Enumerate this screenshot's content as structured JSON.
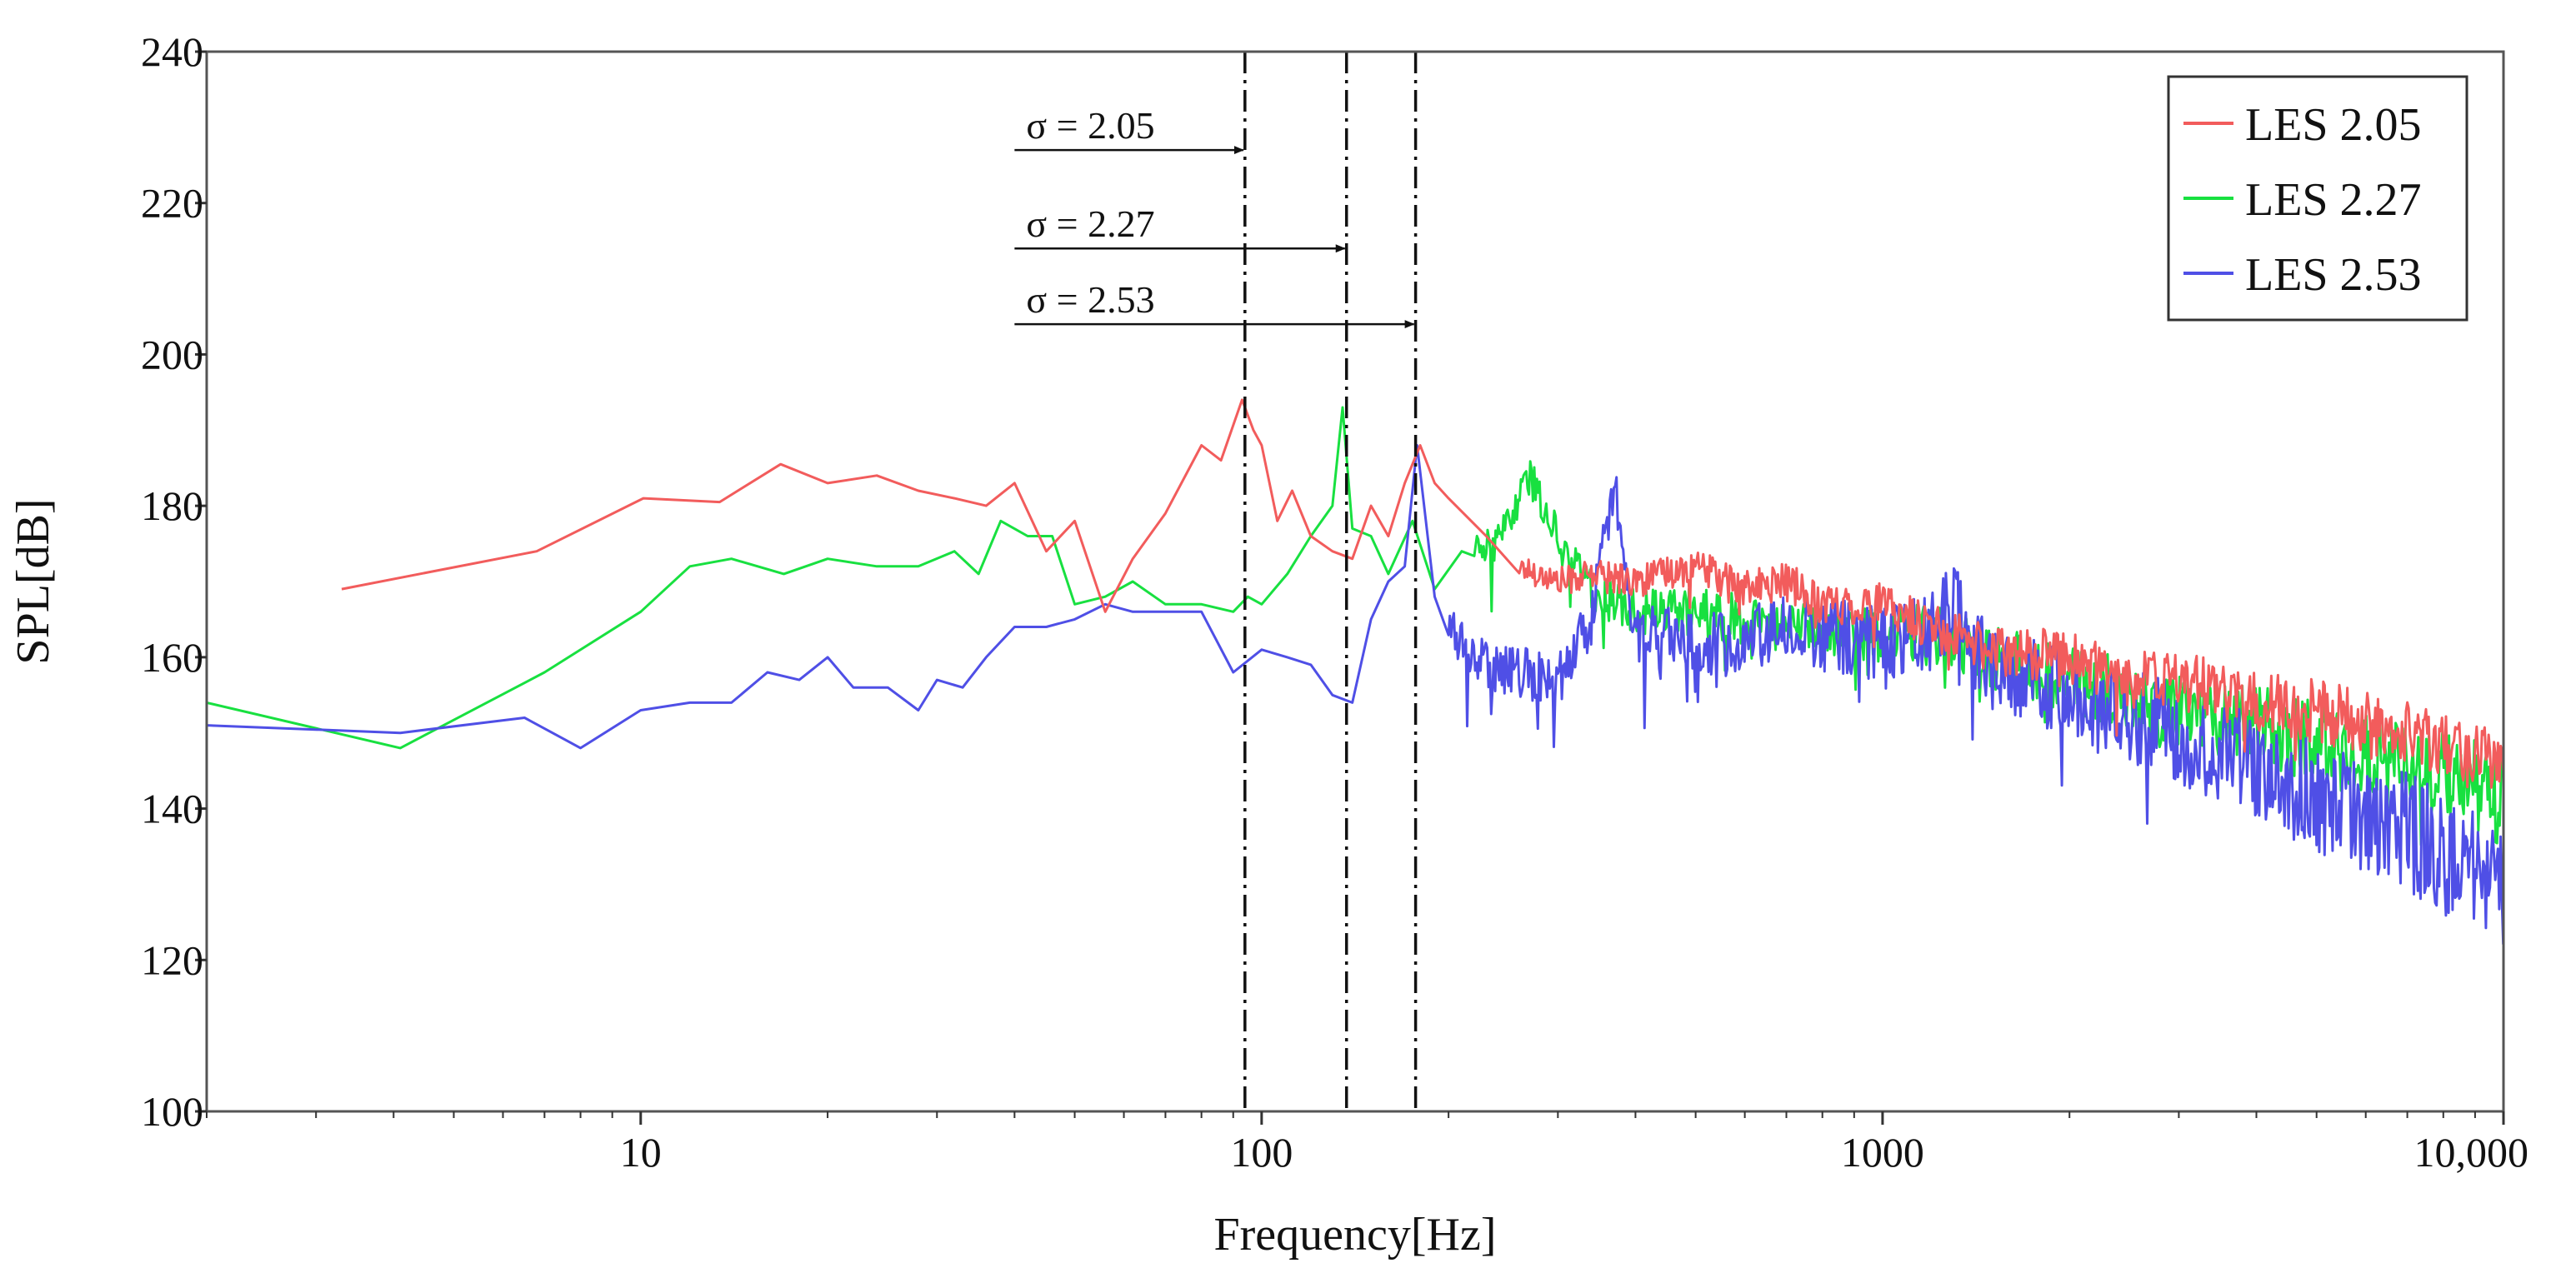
{
  "chart_data": {
    "type": "line",
    "title": "",
    "xlabel": "Frequency[Hz]",
    "ylabel": "SPL[dB]",
    "xscale": "log",
    "xlim": [
      2,
      10000
    ],
    "ylim": [
      100,
      240
    ],
    "grid": false,
    "legend_position": "top-right",
    "x_ticks": [
      {
        "value": 10,
        "label": "10"
      },
      {
        "value": 100,
        "label": "100"
      },
      {
        "value": 1000,
        "label": "1000"
      },
      {
        "value": 10000,
        "label": "10,000"
      }
    ],
    "y_ticks": [
      {
        "value": 100,
        "label": "100"
      },
      {
        "value": 120,
        "label": "120"
      },
      {
        "value": 140,
        "label": "140"
      },
      {
        "value": 160,
        "label": "160"
      },
      {
        "value": 180,
        "label": "180"
      },
      {
        "value": 200,
        "label": "200"
      },
      {
        "value": 220,
        "label": "220"
      },
      {
        "value": 240,
        "label": "240"
      }
    ],
    "series": [
      {
        "name": "LES 2.05",
        "color": "#f25c5c",
        "x": [
          3.3,
          6.8,
          10.1,
          13.4,
          16.8,
          20,
          24,
          28,
          32,
          36,
          40,
          45,
          50,
          56,
          62,
          70,
          80,
          86,
          93,
          97,
          100,
          106,
          112,
          120,
          130,
          140,
          150,
          160,
          170,
          180,
          190,
          200,
          230,
          260,
          300,
          350,
          400,
          500,
          600,
          700,
          800,
          1000,
          1200,
          1500,
          2000,
          2500,
          3000,
          4000,
          5000,
          6000,
          7000,
          8000,
          9000,
          10000
        ],
        "y": [
          169,
          174,
          181,
          180.5,
          185.5,
          183,
          184,
          182,
          181,
          180,
          183,
          174,
          178,
          166,
          173,
          179,
          188,
          186,
          194,
          190,
          188,
          178,
          182,
          176,
          174,
          173,
          180,
          176,
          183,
          188,
          183,
          181,
          176,
          172,
          170,
          171,
          170,
          172,
          169,
          170,
          167,
          167,
          164,
          161,
          160,
          157,
          157,
          154,
          153,
          151,
          150,
          149,
          148,
          146
        ],
        "noise_from": 260,
        "noise_amp": 3.5
      },
      {
        "name": "LES 2.27",
        "color": "#18e040",
        "x": [
          2,
          4.1,
          7,
          10,
          12,
          14,
          17,
          20,
          24,
          28,
          32,
          35,
          38,
          42,
          46,
          50,
          56,
          62,
          70,
          80,
          90,
          95,
          100,
          110,
          120,
          130,
          135,
          140,
          150,
          160,
          175,
          190,
          210,
          240,
          270,
          300,
          350,
          400,
          500,
          600,
          700,
          800,
          1000,
          1200,
          1500,
          2000,
          2500,
          3000,
          4000,
          5000,
          6000,
          7000,
          8000,
          9000,
          10000
        ],
        "y": [
          154,
          148,
          158,
          166,
          172,
          173,
          171,
          173,
          172,
          172,
          174,
          171,
          178,
          176,
          176,
          167,
          168,
          170,
          167,
          167,
          166,
          168,
          167,
          171,
          176,
          180,
          193,
          177,
          176,
          171,
          178,
          169,
          174,
          175,
          184,
          176,
          168,
          166,
          166,
          165,
          164,
          164,
          163,
          163,
          160,
          157,
          155,
          153,
          151,
          149,
          147,
          145,
          144,
          143,
          141
        ],
        "noise_from": 220,
        "noise_amp": 4.5
      },
      {
        "name": "LES 2.53",
        "color": "#4f4fe6",
        "x": [
          2,
          4.1,
          6.5,
          8,
          10,
          12,
          14,
          16,
          18,
          20,
          22,
          25,
          28,
          30,
          33,
          36,
          40,
          45,
          50,
          56,
          62,
          70,
          80,
          90,
          100,
          110,
          120,
          130,
          140,
          150,
          160,
          170,
          178,
          190,
          200,
          230,
          260,
          300,
          340,
          370,
          400,
          450,
          500,
          600,
          700,
          800,
          1000,
          1200,
          1300,
          1500,
          2000,
          2500,
          3000,
          4000,
          5000,
          6000,
          7000,
          8000,
          9000,
          10000
        ],
        "y": [
          151,
          150,
          152,
          148,
          153,
          154,
          154,
          158,
          157,
          160,
          156,
          156,
          153,
          157,
          156,
          160,
          164,
          164,
          165,
          167,
          166,
          166,
          166,
          158,
          161,
          160,
          159,
          155,
          154,
          165,
          170,
          172,
          188,
          168,
          164,
          159,
          158,
          157,
          165,
          184,
          163,
          163,
          162,
          162,
          164,
          163,
          162,
          163,
          167,
          158,
          155,
          152,
          150,
          146,
          141,
          139,
          137,
          134,
          132,
          130
        ],
        "noise_from": 200,
        "noise_amp": 6
      }
    ],
    "vlines": [
      {
        "x": 94,
        "label": "σ = 2.05",
        "arrow_y": 227,
        "arrow_from_x": 40
      },
      {
        "x": 137,
        "label": "σ = 2.27",
        "arrow_y": 214,
        "arrow_from_x": 40
      },
      {
        "x": 177,
        "label": "σ = 2.53",
        "arrow_y": 204,
        "arrow_from_x": 40
      }
    ]
  }
}
